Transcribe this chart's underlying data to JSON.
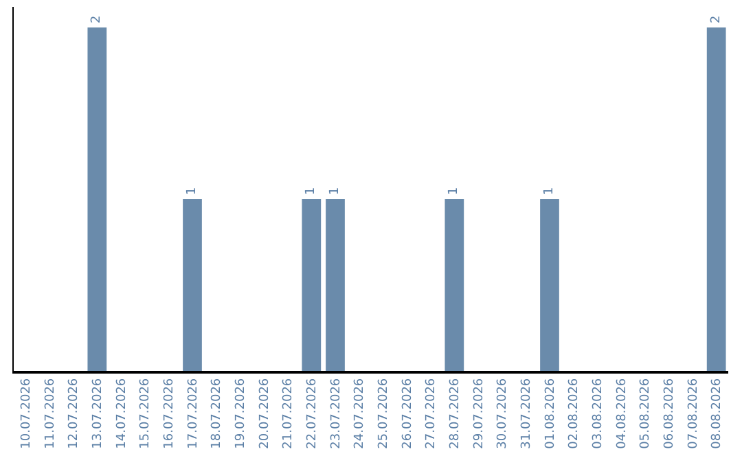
{
  "chart_data": {
    "type": "bar",
    "categories": [
      "10.07.2026",
      "11.07.2026",
      "12.07.2026",
      "13.07.2026",
      "14.07.2026",
      "15.07.2026",
      "16.07.2026",
      "17.07.2026",
      "18.07.2026",
      "19.07.2026",
      "20.07.2026",
      "21.07.2026",
      "22.07.2026",
      "23.07.2026",
      "24.07.2026",
      "25.07.2026",
      "26.07.2026",
      "27.07.2026",
      "28.07.2026",
      "29.07.2026",
      "30.07.2026",
      "31.07.2026",
      "01.08.2026",
      "02.08.2026",
      "03.08.2026",
      "04.08.2026",
      "05.08.2026",
      "06.08.2026",
      "07.08.2026",
      "08.08.2026"
    ],
    "values": [
      0,
      0,
      0,
      2,
      0,
      0,
      0,
      1,
      0,
      0,
      0,
      0,
      1,
      1,
      0,
      0,
      0,
      0,
      1,
      0,
      0,
      0,
      1,
      0,
      0,
      0,
      0,
      0,
      0,
      2
    ],
    "value_labels": [
      null,
      null,
      null,
      "2",
      null,
      null,
      null,
      "1",
      null,
      null,
      null,
      null,
      "1",
      "1",
      null,
      null,
      null,
      null,
      "1",
      null,
      null,
      null,
      "1",
      null,
      null,
      null,
      null,
      null,
      null,
      "2"
    ],
    "color": "#6a8bab",
    "ylim": [
      0,
      2.12
    ],
    "tick_labels": "x"
  }
}
